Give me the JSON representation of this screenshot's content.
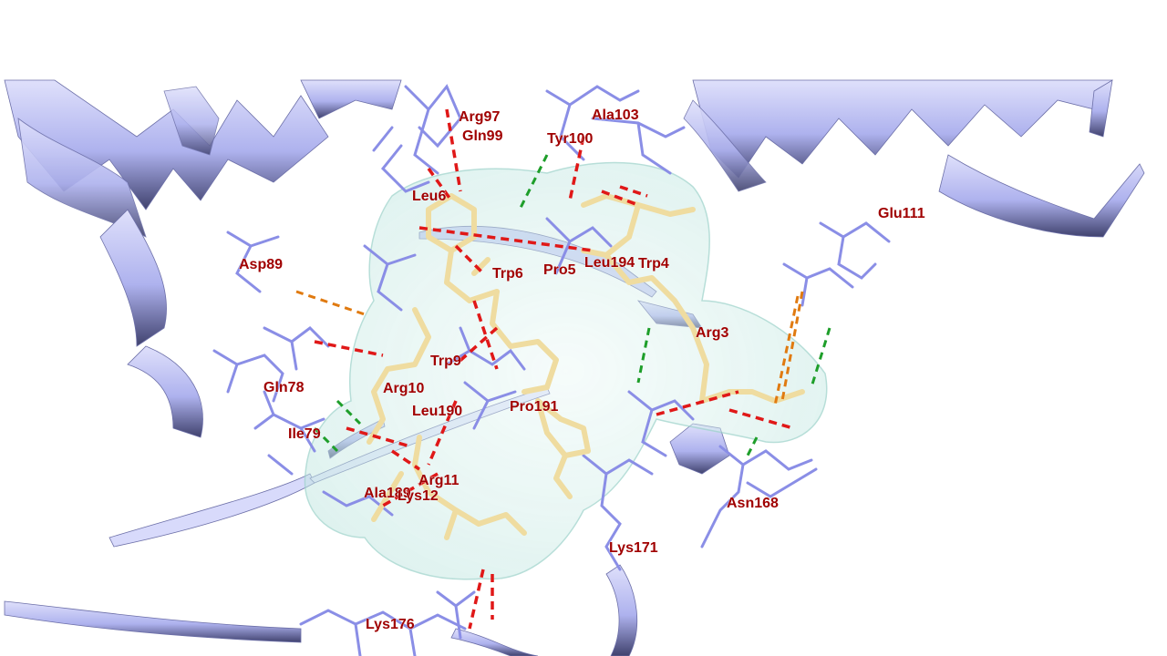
{
  "colors": {
    "protein_ribbon": "#b3b6f0",
    "protein_ribbon_dark": "#5a5c9a",
    "residue_sticks": "#8a8ee6",
    "ligand_sticks": "#efdca0",
    "surface": "#cfeeea",
    "label": "#a00000",
    "hbond_red": "#e01818",
    "hbond_green": "#1e9e2a",
    "hbond_orange": "#e07a10"
  },
  "residue_labels": [
    {
      "id": "arg97",
      "text": "Arg97"
    },
    {
      "id": "gln99",
      "text": "Gln99"
    },
    {
      "id": "ala103",
      "text": "Ala103"
    },
    {
      "id": "tyr100",
      "text": "Tyr100"
    },
    {
      "id": "leu6",
      "text": "Leu6"
    },
    {
      "id": "glu111",
      "text": "Glu111"
    },
    {
      "id": "asp89",
      "text": "Asp89"
    },
    {
      "id": "trp6",
      "text": "Trp6"
    },
    {
      "id": "pro5",
      "text": "Pro5"
    },
    {
      "id": "leu194",
      "text": "Leu194"
    },
    {
      "id": "trp4",
      "text": "Trp4"
    },
    {
      "id": "arg3",
      "text": "Arg3"
    },
    {
      "id": "trp9",
      "text": "Trp9"
    },
    {
      "id": "gln78",
      "text": "Gln78"
    },
    {
      "id": "arg10",
      "text": "Arg10"
    },
    {
      "id": "leu190",
      "text": "Leu190"
    },
    {
      "id": "pro191",
      "text": "Pro191"
    },
    {
      "id": "ile79",
      "text": "Ile79"
    },
    {
      "id": "arg11",
      "text": "Arg11"
    },
    {
      "id": "ala189",
      "text": "Ala189"
    },
    {
      "id": "lys12",
      "text": "Lys12"
    },
    {
      "id": "asn168",
      "text": "Asn168"
    },
    {
      "id": "lys171",
      "text": "Lys171"
    },
    {
      "id": "lys176",
      "text": "Lys176"
    }
  ]
}
